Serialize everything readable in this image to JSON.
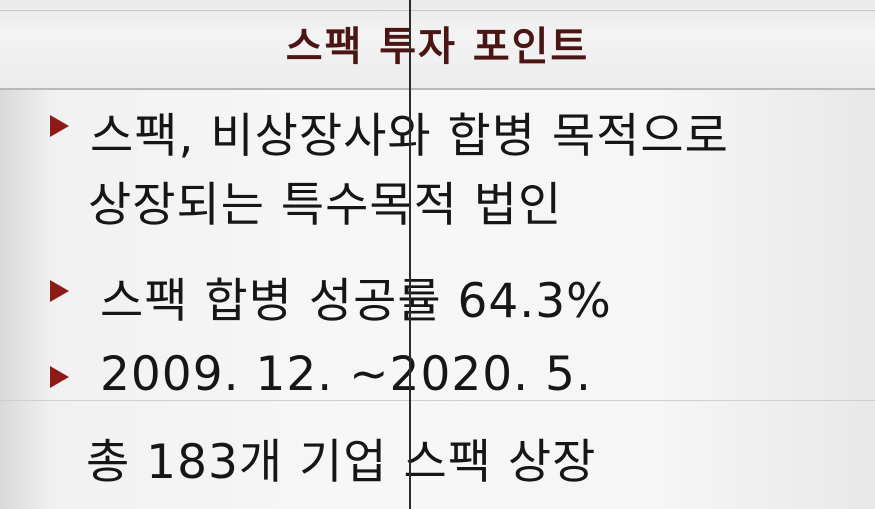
{
  "title": "스팩 투자 포인트",
  "points": [
    {
      "lines": [
        "스팩, 비상장사와 합병 목적으로",
        "상장되는 특수목적 법인"
      ]
    },
    {
      "lines": [
        "스팩 합병 성공률 64.3%"
      ]
    },
    {
      "lines": [
        "2009. 12. ~2020. 5.",
        "총 183개 기업 스팩 상장"
      ]
    }
  ],
  "colors": {
    "title": "#4a1512",
    "bullet": "#8e1a16",
    "text": "#161616"
  }
}
